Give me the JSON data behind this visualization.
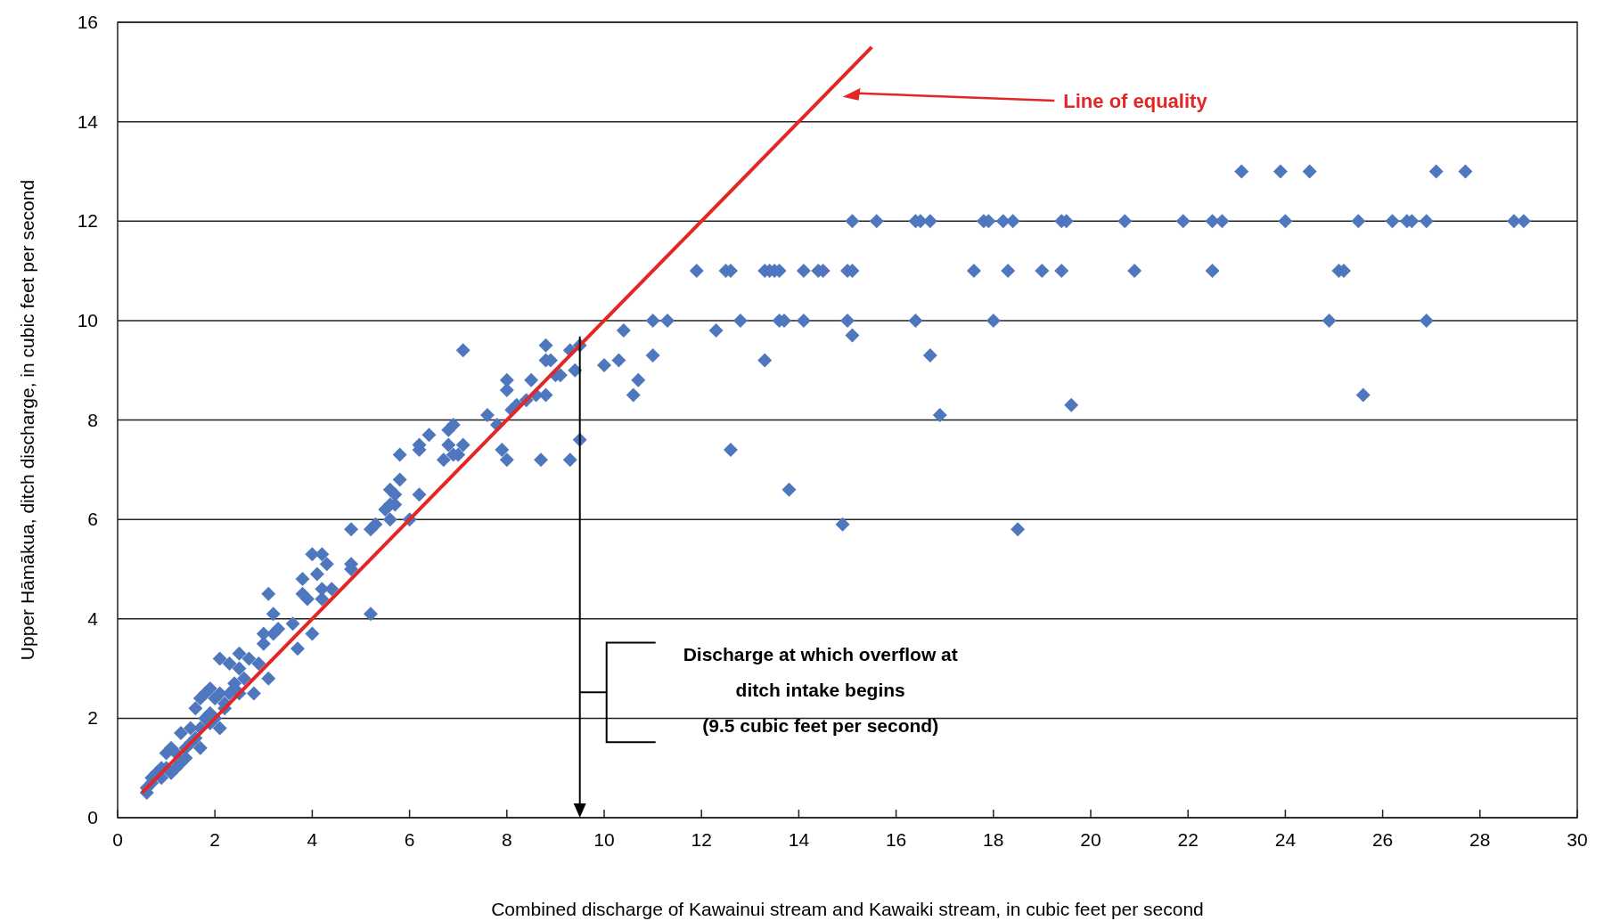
{
  "chart_data": {
    "type": "scatter",
    "xlabel": "Combined discharge of Kawainui stream and Kawaiki stream, in cubic feet per second",
    "ylabel": "Upper Hāmākua, ditch discharge, in cubic feet per second",
    "xlim": [
      0,
      30
    ],
    "ylim": [
      0,
      16
    ],
    "xticks": [
      0,
      2,
      4,
      6,
      8,
      10,
      12,
      14,
      16,
      18,
      20,
      22,
      24,
      26,
      28,
      30
    ],
    "yticks": [
      0,
      2,
      4,
      6,
      8,
      10,
      12,
      14,
      16
    ],
    "grid": "y",
    "ref_lines": [
      {
        "axis": "x",
        "value": 9.5,
        "label": "Discharge at which overflow at\nditch intake begins\n(9.5 cubic feet per second)",
        "color": "#000000"
      }
    ],
    "series": [
      {
        "marker": "diamond",
        "color": "#4f77be",
        "x": [
          23.1,
          23.9,
          24.5,
          27.1,
          27.7,
          15.1,
          15.6,
          16.4,
          16.5,
          16.7,
          17.8,
          17.9,
          18.2,
          18.4,
          19.4,
          19.5,
          20.7,
          21.9,
          22.5,
          22.7,
          24.0,
          25.5,
          26.2,
          26.5,
          26.6,
          26.9,
          28.7,
          28.9,
          11.9,
          12.5,
          12.6,
          13.3,
          13.4,
          13.5,
          13.6,
          14.1,
          14.4,
          14.5,
          15.0,
          15.1,
          17.6,
          18.3,
          19.0,
          19.4,
          20.9,
          22.5,
          25.1,
          25.2,
          11.0,
          11.3,
          12.8,
          13.6,
          13.7,
          14.1,
          15.0,
          16.4,
          18.0,
          24.9,
          26.9,
          10.4,
          12.3,
          15.1,
          10.0,
          10.3,
          11.0,
          13.3,
          16.7,
          10.7,
          10.6,
          19.6,
          16.9,
          25.6,
          12.6,
          13.8,
          14.9,
          18.5,
          9.5,
          9.3,
          8.7,
          8.0,
          7.9,
          8.0,
          8.0,
          8.1,
          8.2,
          8.4,
          8.5,
          8.6,
          8.8,
          8.8,
          8.8,
          8.9,
          9.0,
          9.1,
          9.3,
          9.4,
          9.5,
          7.1,
          7.6,
          7.8,
          6.8,
          6.9,
          6.4,
          6.2,
          6.2,
          6.7,
          6.8,
          7.0,
          7.1,
          6.9,
          6.2,
          6.0,
          5.8,
          5.8,
          5.6,
          5.7,
          5.6,
          5.7,
          5.5,
          5.6,
          5.3,
          5.2,
          5.2,
          4.8,
          4.8,
          4.8,
          4.0,
          4.2,
          4.3,
          4.1,
          3.8,
          3.8,
          3.9,
          4.2,
          4.4,
          4.2,
          4.0,
          3.7,
          3.1,
          3.2,
          3.6,
          3.2,
          3.3,
          3.0,
          3.0,
          3.1,
          2.8,
          2.5,
          2.7,
          2.9,
          2.3,
          2.1,
          2.5,
          2.6,
          2.4,
          2.3,
          2.5,
          2.0,
          2.2,
          1.9,
          1.7,
          1.8,
          1.6,
          2.0,
          2.1,
          1.8,
          1.5,
          1.3,
          1.5,
          1.7,
          1.4,
          1.2,
          1.3,
          1.0,
          1.1,
          0.9,
          1.1,
          1.0,
          0.7,
          0.6,
          0.6,
          0.7,
          0.9,
          1.2,
          1.6,
          1.9,
          2.2,
          2.4,
          1.4,
          1.7,
          0.8,
          1.9,
          2.1
        ],
        "values": [
          13,
          13,
          13,
          13,
          13,
          12,
          12,
          12,
          12,
          12,
          12,
          12,
          12,
          12,
          12,
          12,
          12,
          12,
          12,
          12,
          12,
          12,
          12,
          12,
          12,
          12,
          12,
          12,
          11,
          11,
          11,
          11,
          11,
          11,
          11,
          11,
          11,
          11,
          11,
          11,
          11,
          11,
          11,
          11,
          11,
          11,
          11,
          11,
          10,
          10,
          10,
          10,
          10,
          10,
          10,
          10,
          10,
          10,
          10,
          9.8,
          9.8,
          9.7,
          9.1,
          9.2,
          9.3,
          9.2,
          9.3,
          8.8,
          8.5,
          8.3,
          8.1,
          8.5,
          7.4,
          6.6,
          5.9,
          5.8,
          7.6,
          7.2,
          7.2,
          7.2,
          7.4,
          8.8,
          8.6,
          8.2,
          8.3,
          8.4,
          8.8,
          8.5,
          8.5,
          9.2,
          9.5,
          9.2,
          8.9,
          8.9,
          9.4,
          9.0,
          9.5,
          9.4,
          8.1,
          7.9,
          7.8,
          7.9,
          7.7,
          7.4,
          7.5,
          7.2,
          7.5,
          7.3,
          7.5,
          7.3,
          6.5,
          6.0,
          7.3,
          6.8,
          6.6,
          6.5,
          6.3,
          6.3,
          6.2,
          6.0,
          5.9,
          5.8,
          4.1,
          5.8,
          5.1,
          5.0,
          5.3,
          5.3,
          5.1,
          4.9,
          4.8,
          4.5,
          4.4,
          4.6,
          4.6,
          4.4,
          3.7,
          3.4,
          4.5,
          4.1,
          3.9,
          3.7,
          3.8,
          3.7,
          3.5,
          2.8,
          2.5,
          3.3,
          3.2,
          3.1,
          3.1,
          3.2,
          3.0,
          2.8,
          2.7,
          2.5,
          2.5,
          2.4,
          2.3,
          2.6,
          2.4,
          2.5,
          2.2,
          2.0,
          1.8,
          2.0,
          1.8,
          1.7,
          1.5,
          1.4,
          1.4,
          1.3,
          1.1,
          1.3,
          1.4,
          1.0,
          0.9,
          1.0,
          0.8,
          0.6,
          0.5,
          0.7,
          0.8,
          1.0,
          1.6,
          1.9,
          2.2,
          2.6,
          1.2,
          1.8,
          0.9,
          2.1,
          2.5
        ]
      },
      {
        "type": "line",
        "name": "Line of equality",
        "color": "#e32726",
        "line_style": "solid",
        "x": [
          0.5,
          15.5
        ],
        "values": [
          0.5,
          15.5
        ]
      }
    ]
  }
}
